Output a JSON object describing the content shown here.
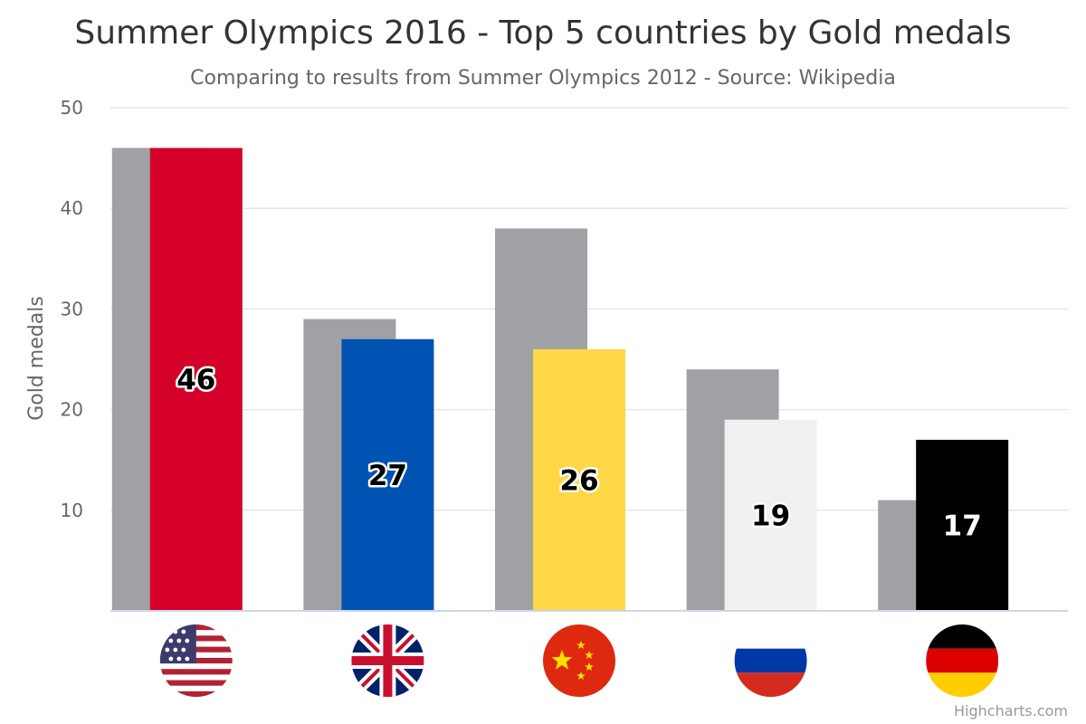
{
  "chart_data": {
    "type": "bar",
    "title": "Summer Olympics 2016 - Top 5 countries by Gold medals",
    "subtitle": "Comparing to results from Summer Olympics 2012 - Source: Wikipedia",
    "ylabel": "Gold medals",
    "ylim": [
      0,
      50
    ],
    "yticks": [
      10,
      20,
      30,
      40,
      50
    ],
    "grid": true,
    "legend": "none",
    "categories": [
      {
        "country": "United States",
        "flag": "us-flag-icon",
        "colors": [
          "#b22234",
          "#ffffff",
          "#3c3b6e"
        ]
      },
      {
        "country": "Great Britain",
        "flag": "gb-flag-icon",
        "colors": [
          "#012169",
          "#ffffff",
          "#c8102e"
        ]
      },
      {
        "country": "China",
        "flag": "china-flag-icon",
        "colors": [
          "#de2910",
          "#ffde00"
        ]
      },
      {
        "country": "Russia",
        "flag": "russia-flag-icon",
        "colors": [
          "#ffffff",
          "#0039a6",
          "#d52b1e"
        ]
      },
      {
        "country": "Germany",
        "flag": "germany-flag-icon",
        "colors": [
          "#000000",
          "#dd0000",
          "#ffce00"
        ]
      }
    ],
    "series": [
      {
        "id": "2012",
        "values": [
          46,
          29,
          38,
          24,
          11
        ],
        "color": "#a0a1a5"
      },
      {
        "id": "2016",
        "values": [
          46,
          27,
          26,
          19,
          17
        ],
        "colors": [
          "#d5002a",
          "#0053b2",
          "#fdd745",
          "#f0f0f0",
          "#000000"
        ],
        "label_colors": [
          "#000000",
          "#000000",
          "#000000",
          "#000000",
          "#ffffff"
        ],
        "label_strokes": [
          "#ffffff",
          "#ffffff",
          "#ffffff",
          "#ffffff",
          "#000000"
        ]
      }
    ]
  },
  "credits": "Highcharts.com"
}
